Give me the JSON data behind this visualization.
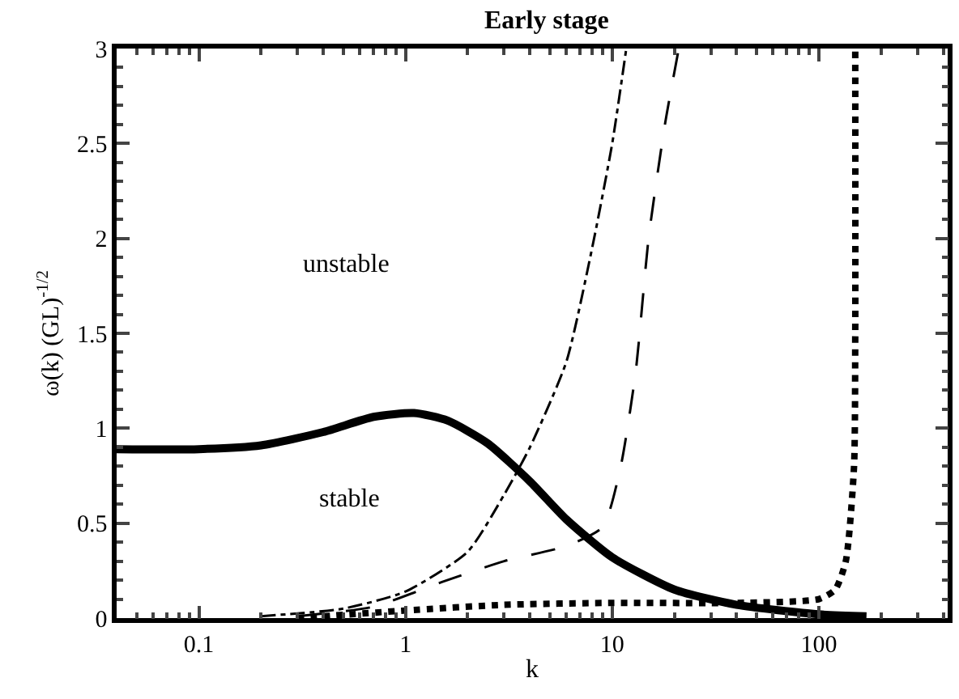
{
  "chart_data": {
    "type": "line",
    "title": "Early stage",
    "xlabel": "k",
    "ylabel": "ω(k) (GL)$^{-1/2}$",
    "log": "x",
    "xlim": [
      0.04,
      420
    ],
    "xticks": [
      0.1,
      1,
      10,
      100
    ],
    "ylim": [
      0,
      3
    ],
    "yticks": [
      0,
      0.5,
      1,
      1.5,
      2,
      2.5,
      3
    ],
    "marker": "none",
    "annotations": [
      "unstable",
      "stable"
    ],
    "series": [
      {
        "color": "#000000",
        "line_style": "solid",
        "x": [
          0.04,
          0.1,
          0.2,
          0.4,
          0.7,
          1.1,
          1.6,
          2.5,
          4,
          6,
          10,
          20,
          40,
          100,
          170
        ],
        "values": [
          0.89,
          0.89,
          0.91,
          0.98,
          1.06,
          1.08,
          1.04,
          0.92,
          0.72,
          0.52,
          0.32,
          0.15,
          0.07,
          0.02,
          0.01
        ]
      },
      {
        "color": "#000000",
        "line_style": "dashdot",
        "x": [
          0.2,
          0.5,
          1,
          2,
          3,
          4,
          6,
          8,
          10,
          11.7
        ],
        "values": [
          0.01,
          0.05,
          0.14,
          0.35,
          0.65,
          0.9,
          1.35,
          1.95,
          2.5,
          3.0
        ]
      },
      {
        "color": "#000000",
        "line_style": "dashed",
        "x": [
          0.3,
          0.7,
          1.5,
          3,
          6,
          9,
          11,
          13,
          15,
          18,
          21
        ],
        "values": [
          0.01,
          0.06,
          0.19,
          0.3,
          0.38,
          0.48,
          0.8,
          1.3,
          2.0,
          2.6,
          3.0
        ]
      },
      {
        "color": "#000000",
        "line_style": "dotted",
        "x": [
          0.3,
          1,
          3,
          10,
          40,
          100,
          120,
          135,
          148,
          150,
          150
        ],
        "values": [
          0.0,
          0.04,
          0.07,
          0.08,
          0.08,
          0.1,
          0.15,
          0.3,
          0.8,
          1.5,
          3.0
        ]
      }
    ]
  }
}
